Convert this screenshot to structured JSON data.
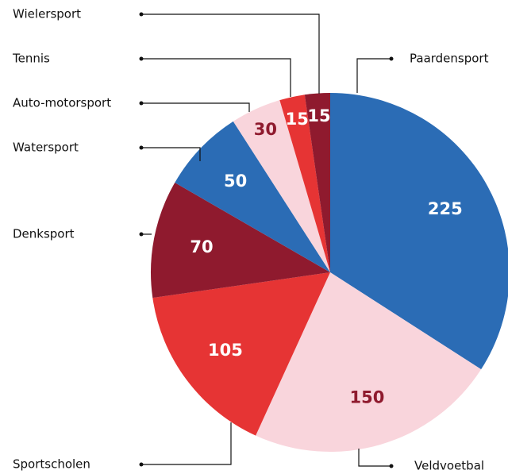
{
  "chart_data": {
    "type": "pie",
    "categories": [
      "Paardensport",
      "Veldvoetbal",
      "Sportscholen",
      "Denksport",
      "Watersport",
      "Auto-motorsport",
      "Tennis",
      "Wielersport"
    ],
    "values": [
      225,
      150,
      105,
      70,
      50,
      30,
      15,
      15
    ],
    "colors": [
      "#2b6cb5",
      "#f9d5dc",
      "#e63434",
      "#8f1a2e",
      "#2b6cb5",
      "#f9d5dc",
      "#e63434",
      "#8f1a2e"
    ]
  }
}
